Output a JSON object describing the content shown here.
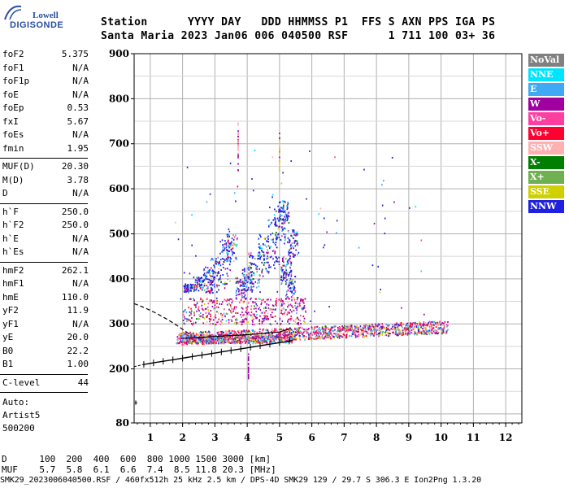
{
  "logo": {
    "top": "Lowell",
    "bottom": "DIGISONDE"
  },
  "header": {
    "line1": "Station      YYYY DAY   DDD HHMMSS P1  FFS S AXN PPS IGA PS",
    "line2": "Santa Maria 2023 Jan06 006 040500 RSF      1 711 100 03+ 36"
  },
  "params_group1": [
    {
      "k": "foF2",
      "v": "5.375"
    },
    {
      "k": "foF1",
      "v": "N/A"
    },
    {
      "k": "foF1p",
      "v": "N/A"
    },
    {
      "k": "foE",
      "v": "N/A"
    },
    {
      "k": "foEp",
      "v": "0.53"
    },
    {
      "k": "fxI",
      "v": "5.67"
    },
    {
      "k": "foEs",
      "v": "N/A"
    },
    {
      "k": "fmin",
      "v": "1.95"
    }
  ],
  "params_group2": [
    {
      "k": "MUF(D)",
      "v": "20.30"
    },
    {
      "k": "M(D)",
      "v": "3.78"
    },
    {
      "k": "D",
      "v": "N/A"
    }
  ],
  "params_group3": [
    {
      "k": "h`F",
      "v": "250.0"
    },
    {
      "k": "h`F2",
      "v": "250.0"
    },
    {
      "k": "h`E",
      "v": "N/A"
    },
    {
      "k": "h`Es",
      "v": "N/A"
    }
  ],
  "params_group4": [
    {
      "k": "hmF2",
      "v": "262.1"
    },
    {
      "k": "hmF1",
      "v": "N/A"
    },
    {
      "k": "hmE",
      "v": "110.0"
    },
    {
      "k": "yF2",
      "v": "11.9"
    },
    {
      "k": "yF1",
      "v": "N/A"
    },
    {
      "k": "yE",
      "v": "20.0"
    },
    {
      "k": "B0",
      "v": "22.2"
    },
    {
      "k": "B1",
      "v": "1.00"
    }
  ],
  "params_group5": [
    {
      "k": "C-level",
      "v": "44"
    }
  ],
  "auto": {
    "label": "Auto:",
    "system": "Artist5",
    "version": "500200"
  },
  "legend": [
    {
      "label": "NoVal",
      "color": "#808080"
    },
    {
      "label": "NNE",
      "color": "#00e5ff"
    },
    {
      "label": "E",
      "color": "#3fa9f5"
    },
    {
      "label": "W",
      "color": "#a000a0"
    },
    {
      "label": "Vo-",
      "color": "#ff3fa0"
    },
    {
      "label": "Vo+",
      "color": "#ff0030"
    },
    {
      "label": "SSW",
      "color": "#ffb0b0"
    },
    {
      "label": "X-",
      "color": "#007f00"
    },
    {
      "label": "X+",
      "color": "#70b050"
    },
    {
      "label": "SSE",
      "color": "#d0d000"
    },
    {
      "label": "NNW",
      "color": "#2020e0"
    }
  ],
  "bottom": {
    "d_line": "D      100  200  400  600  800 1000 1500 3000 [km]",
    "muf_line": "MUF    5.7  5.8  6.1  6.6  7.4  8.5 11.8 20.3 [MHz]"
  },
  "status": "SMK29_2023006040500.RSF / 460fx512h 25 kHz 2.5 km / DPS-4D SMK29 129 / 29.7 S 306.3 E Ion2Png 1.3.20",
  "chart_data": {
    "type": "scatter",
    "x_ticks": [
      1,
      2,
      3,
      4,
      5,
      6,
      7,
      8,
      9,
      10,
      11,
      12
    ],
    "y_ticks": [
      80,
      200,
      300,
      400,
      500,
      600,
      700,
      800,
      900
    ],
    "xlim": [
      0.5,
      12.5
    ],
    "ylim": [
      80,
      900
    ],
    "grid": true
  }
}
